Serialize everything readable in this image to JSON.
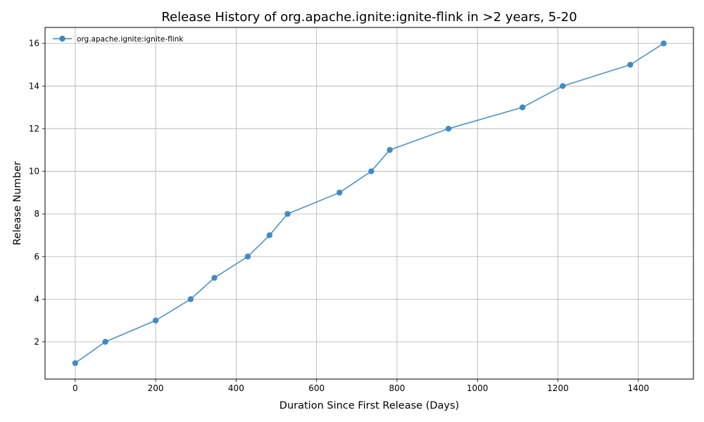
{
  "chart_data": {
    "type": "line",
    "title": "Release History of org.apache.ignite:ignite-flink in >2 years, 5-20",
    "xlabel": "Duration Since First Release (Days)",
    "ylabel": "Release Number",
    "xlim": [
      -75,
      1537
    ],
    "ylim": [
      0.25,
      16.75
    ],
    "xticks": [
      0,
      200,
      400,
      600,
      800,
      1000,
      1200,
      1400
    ],
    "yticks": [
      2,
      4,
      6,
      8,
      10,
      12,
      14,
      16
    ],
    "grid": true,
    "legend_position": "top-left",
    "color": "#3c86bf",
    "series": [
      {
        "name": "org.apache.ignite:ignite-flink",
        "x": [
          0,
          75,
          200,
          287,
          346,
          429,
          483,
          528,
          657,
          736,
          782,
          928,
          1112,
          1212,
          1380,
          1463
        ],
        "y": [
          1,
          2,
          3,
          4,
          5,
          6,
          7,
          8,
          9,
          10,
          11,
          12,
          13,
          14,
          15,
          16
        ]
      }
    ]
  }
}
